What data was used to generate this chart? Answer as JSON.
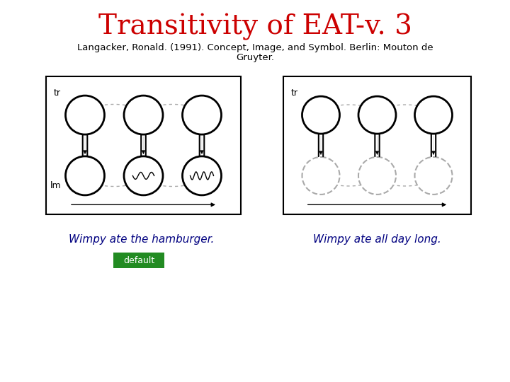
{
  "title": "Transitivity of EAT-v. 3",
  "title_color": "#cc0000",
  "title_fontsize": 28,
  "subtitle_fontsize": 9.5,
  "caption_left": "Wimpy ate the hamburger.",
  "caption_right": "Wimpy ate all day long.",
  "caption_color": "#000080",
  "caption_fontsize": 11,
  "button_text": "default",
  "button_color": "#228b22",
  "button_text_color": "#ffffff",
  "bg_color": "#ffffff",
  "diagram_border_color": "#000000",
  "circle_color": "#000000",
  "arrow_color": "#000000",
  "dashed_color": "#aaaaaa"
}
